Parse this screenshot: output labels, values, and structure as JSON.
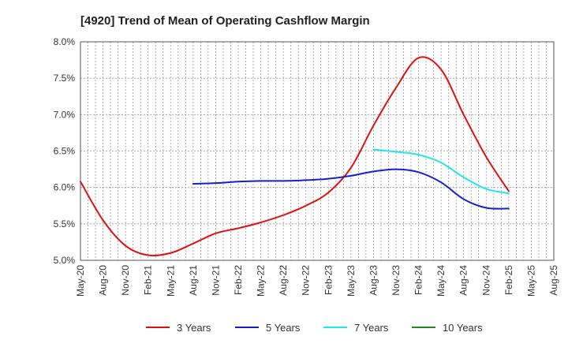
{
  "chart_data": {
    "type": "line",
    "title": "[4920]  Trend of Mean of Operating Cashflow Margin",
    "xlabel": "",
    "ylabel": "",
    "ylim": [
      5.0,
      8.0
    ],
    "y_ticks": [
      "5.0%",
      "5.5%",
      "6.0%",
      "6.5%",
      "7.0%",
      "7.5%",
      "8.0%"
    ],
    "y_tick_values": [
      5.0,
      5.5,
      6.0,
      6.5,
      7.0,
      7.5,
      8.0
    ],
    "categories": [
      "May-20",
      "Aug-20",
      "Nov-20",
      "Feb-21",
      "May-21",
      "Aug-21",
      "Nov-21",
      "Feb-22",
      "May-22",
      "Aug-22",
      "Nov-22",
      "Feb-23",
      "May-23",
      "Aug-23",
      "Nov-23",
      "Feb-24",
      "May-24",
      "Aug-24",
      "Nov-24",
      "Feb-25",
      "May-25",
      "Aug-25"
    ],
    "grid": true,
    "legend_position": "bottom",
    "series": [
      {
        "name": "3 Years",
        "color": "#dd1111",
        "values": [
          6.08,
          5.55,
          5.2,
          5.07,
          5.1,
          5.23,
          5.37,
          5.44,
          5.52,
          5.62,
          5.75,
          5.93,
          6.27,
          6.85,
          7.37,
          7.78,
          7.62,
          7.0,
          6.42,
          5.95,
          null,
          null
        ]
      },
      {
        "name": "5 Years",
        "color": "#1122cc",
        "values": [
          null,
          null,
          null,
          null,
          null,
          6.05,
          6.06,
          6.08,
          6.09,
          6.09,
          6.1,
          6.12,
          6.16,
          6.22,
          6.25,
          6.21,
          6.07,
          5.84,
          5.72,
          5.71,
          null,
          null
        ]
      },
      {
        "name": "7 Years",
        "color": "#22e5ee",
        "values": [
          null,
          null,
          null,
          null,
          null,
          null,
          null,
          null,
          null,
          null,
          null,
          null,
          null,
          6.52,
          6.49,
          6.45,
          6.34,
          6.14,
          5.98,
          5.92,
          null,
          null
        ]
      },
      {
        "name": "10 Years",
        "color": "#228822",
        "values": [
          null,
          null,
          null,
          null,
          null,
          null,
          null,
          null,
          null,
          null,
          null,
          null,
          null,
          null,
          null,
          null,
          null,
          null,
          null,
          null,
          null,
          null
        ]
      }
    ]
  }
}
